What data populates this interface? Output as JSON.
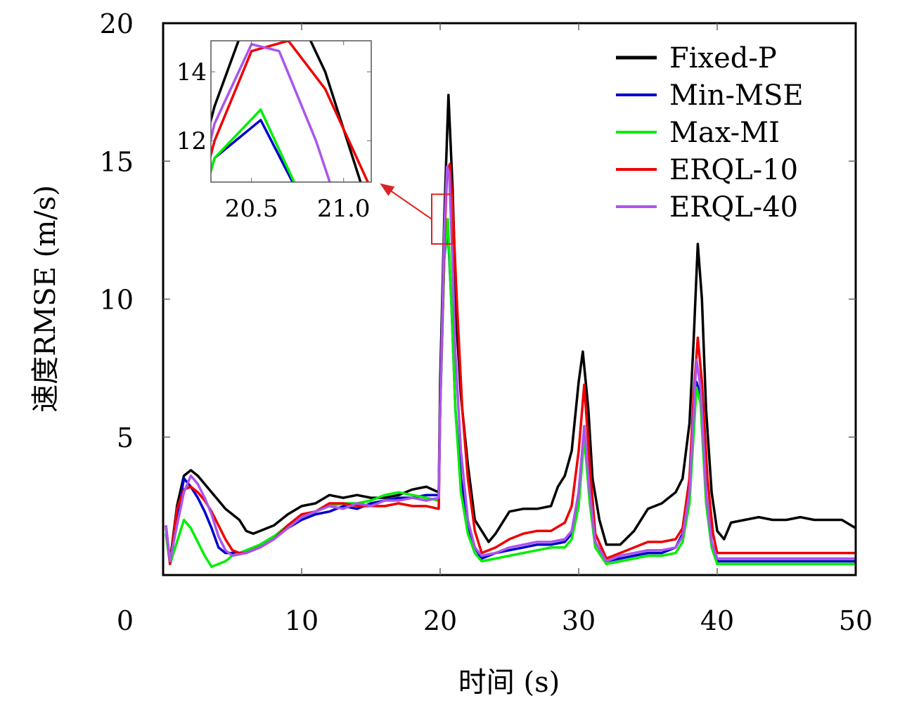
{
  "chart_data": {
    "type": "line",
    "title": "",
    "xlabel": "时间 (s)",
    "ylabel": "速度RMSE (m/s)",
    "xlim": [
      0,
      50
    ],
    "ylim": [
      0,
      20
    ],
    "x_ticks": [
      0,
      10,
      20,
      30,
      40,
      50
    ],
    "x_tick_labels": [
      "0",
      "10",
      "20",
      "30",
      "40",
      "50"
    ],
    "y_ticks": [
      5,
      10,
      15,
      20
    ],
    "y_tick_labels": [
      "5",
      "10",
      "15",
      "20"
    ],
    "grid": false,
    "legend_position": "top-right",
    "series": [
      {
        "name": "Fixed-P",
        "color": "#000000",
        "x": [
          0.2,
          0.5,
          1.0,
          1.5,
          2.0,
          2.5,
          3.0,
          3.5,
          4.0,
          4.5,
          5.0,
          5.5,
          6.0,
          6.5,
          7.0,
          8.0,
          9.0,
          10.0,
          11.0,
          12.0,
          13.0,
          14.0,
          15.0,
          16.0,
          17.0,
          18.0,
          19.0,
          19.9,
          20.0,
          20.3,
          20.6,
          20.9,
          21.2,
          21.5,
          22.0,
          22.5,
          23.0,
          23.5,
          24.0,
          25.0,
          26.0,
          27.0,
          28.0,
          28.5,
          29.0,
          29.5,
          30.0,
          30.3,
          30.7,
          31.0,
          31.5,
          32.0,
          33.0,
          34.0,
          35.0,
          36.0,
          37.0,
          37.5,
          38.0,
          38.3,
          38.6,
          38.9,
          39.2,
          39.6,
          40.0,
          40.5,
          41.0,
          42.0,
          43.0,
          44.0,
          45.0,
          46.0,
          47.0,
          48.0,
          49.0,
          50.0
        ],
        "y": [
          1.8,
          0.5,
          2.5,
          3.6,
          3.8,
          3.6,
          3.3,
          3.0,
          2.7,
          2.4,
          2.2,
          2.0,
          1.6,
          1.5,
          1.6,
          1.8,
          2.2,
          2.5,
          2.6,
          2.9,
          2.8,
          2.9,
          2.8,
          2.8,
          2.9,
          3.1,
          3.2,
          3.0,
          7.0,
          13.0,
          17.4,
          14.0,
          9.0,
          6.5,
          4.0,
          2.0,
          1.6,
          1.2,
          1.5,
          2.3,
          2.4,
          2.4,
          2.5,
          3.2,
          3.6,
          4.5,
          7.0,
          8.1,
          6.0,
          3.5,
          2.0,
          1.1,
          1.1,
          1.6,
          2.4,
          2.6,
          3.0,
          3.5,
          5.5,
          8.5,
          12.0,
          10.0,
          6.0,
          3.0,
          1.6,
          1.3,
          1.9,
          2.0,
          2.1,
          2.0,
          2.0,
          2.1,
          2.0,
          2.0,
          2.0,
          1.7
        ]
      },
      {
        "name": "Min-MSE",
        "color": "#0000cc",
        "x": [
          0.2,
          0.5,
          1.0,
          1.5,
          2.0,
          2.5,
          3.0,
          3.5,
          4.0,
          4.5,
          5.0,
          6.0,
          7.0,
          8.0,
          9.0,
          10.0,
          11.0,
          12.0,
          13.0,
          14.0,
          15.0,
          16.0,
          17.0,
          18.0,
          19.0,
          19.9,
          20.0,
          20.3,
          20.55,
          20.8,
          21.1,
          21.5,
          22.0,
          22.5,
          23.0,
          24.0,
          25.0,
          26.0,
          27.0,
          28.0,
          29.0,
          29.5,
          30.0,
          30.4,
          30.8,
          31.2,
          32.0,
          33.0,
          34.0,
          35.0,
          36.0,
          37.0,
          37.5,
          38.0,
          38.5,
          38.8,
          39.2,
          39.6,
          40.0,
          41.0,
          45.0,
          50.0
        ],
        "y": [
          1.8,
          0.4,
          2.0,
          3.5,
          3.2,
          2.8,
          2.3,
          1.7,
          1.0,
          0.8,
          0.8,
          0.8,
          1.1,
          1.4,
          1.7,
          2.0,
          2.2,
          2.3,
          2.5,
          2.4,
          2.6,
          2.7,
          2.8,
          2.8,
          2.9,
          2.9,
          6.0,
          11.5,
          12.6,
          10.0,
          6.0,
          3.5,
          1.8,
          1.0,
          0.6,
          0.8,
          0.9,
          1.0,
          1.1,
          1.1,
          1.2,
          1.5,
          3.0,
          5.3,
          3.0,
          1.2,
          0.5,
          0.6,
          0.7,
          0.8,
          0.8,
          1.0,
          1.5,
          3.0,
          7.0,
          6.5,
          3.0,
          1.2,
          0.5,
          0.5,
          0.5,
          0.5
        ]
      },
      {
        "name": "Max-MI",
        "color": "#00ee00",
        "x": [
          0.2,
          0.5,
          1.0,
          1.5,
          2.0,
          2.5,
          3.0,
          3.5,
          4.0,
          4.5,
          5.0,
          6.0,
          7.0,
          8.0,
          9.0,
          10.0,
          11.0,
          12.0,
          13.0,
          14.0,
          15.0,
          16.0,
          17.0,
          18.0,
          19.0,
          19.9,
          20.0,
          20.3,
          20.55,
          20.8,
          21.1,
          21.5,
          22.0,
          22.5,
          23.0,
          24.0,
          25.0,
          26.0,
          27.0,
          28.0,
          29.0,
          29.5,
          30.0,
          30.4,
          30.8,
          31.2,
          32.0,
          33.0,
          34.0,
          35.0,
          36.0,
          37.0,
          37.5,
          38.0,
          38.5,
          38.8,
          39.2,
          39.6,
          40.0,
          41.0,
          45.0,
          50.0
        ],
        "y": [
          1.5,
          0.4,
          1.2,
          2.0,
          1.7,
          1.2,
          0.7,
          0.3,
          0.4,
          0.5,
          0.7,
          0.9,
          1.1,
          1.4,
          1.8,
          2.1,
          2.3,
          2.5,
          2.6,
          2.6,
          2.7,
          2.9,
          3.0,
          2.9,
          2.8,
          2.7,
          6.0,
          11.5,
          12.9,
          10.0,
          6.0,
          3.0,
          1.5,
          0.8,
          0.5,
          0.6,
          0.7,
          0.8,
          0.9,
          1.0,
          1.0,
          1.3,
          2.5,
          5.0,
          2.6,
          1.0,
          0.4,
          0.5,
          0.6,
          0.7,
          0.7,
          0.8,
          1.2,
          2.6,
          6.8,
          6.2,
          2.6,
          1.0,
          0.4,
          0.4,
          0.4,
          0.4
        ]
      },
      {
        "name": "ERQL-10",
        "color": "#ee0000",
        "x": [
          0.2,
          0.5,
          1.0,
          1.5,
          2.0,
          2.5,
          3.0,
          3.5,
          4.0,
          4.5,
          5.0,
          5.5,
          6.0,
          7.0,
          8.0,
          9.0,
          10.0,
          11.0,
          12.0,
          13.0,
          14.0,
          15.0,
          16.0,
          17.0,
          18.0,
          19.0,
          19.9,
          20.0,
          20.3,
          20.5,
          20.7,
          20.9,
          21.2,
          21.6,
          22.0,
          22.5,
          23.0,
          24.0,
          25.0,
          26.0,
          27.0,
          28.0,
          29.0,
          29.5,
          30.0,
          30.4,
          30.8,
          31.2,
          32.0,
          33.0,
          34.0,
          35.0,
          36.0,
          37.0,
          37.5,
          38.0,
          38.3,
          38.6,
          38.9,
          39.3,
          39.7,
          40.0,
          41.0,
          45.0,
          50.0
        ],
        "y": [
          1.8,
          0.4,
          2.4,
          3.1,
          3.2,
          3.0,
          2.7,
          2.3,
          1.8,
          1.3,
          0.9,
          0.8,
          0.8,
          1.0,
          1.3,
          1.8,
          2.2,
          2.3,
          2.6,
          2.6,
          2.5,
          2.5,
          2.5,
          2.6,
          2.5,
          2.5,
          2.4,
          6.0,
          12.0,
          14.6,
          14.9,
          13.5,
          10.0,
          6.0,
          3.5,
          1.6,
          0.8,
          1.0,
          1.3,
          1.5,
          1.6,
          1.6,
          1.9,
          2.5,
          4.5,
          6.9,
          4.0,
          1.5,
          0.6,
          0.8,
          1.0,
          1.2,
          1.2,
          1.3,
          1.7,
          3.5,
          6.5,
          8.6,
          7.0,
          3.5,
          1.5,
          0.8,
          0.8,
          0.8,
          0.8
        ]
      },
      {
        "name": "ERQL-40",
        "color": "#aa55ee",
        "x": [
          0.2,
          0.5,
          1.0,
          1.5,
          2.0,
          2.5,
          3.0,
          3.5,
          4.0,
          4.5,
          5.0,
          6.0,
          7.0,
          8.0,
          9.0,
          10.0,
          11.0,
          12.0,
          13.0,
          14.0,
          15.0,
          16.0,
          17.0,
          18.0,
          19.0,
          19.9,
          20.0,
          20.3,
          20.5,
          20.65,
          20.85,
          21.1,
          21.5,
          22.0,
          22.5,
          23.0,
          24.0,
          25.0,
          26.0,
          27.0,
          28.0,
          29.0,
          29.5,
          30.0,
          30.4,
          30.8,
          31.2,
          32.0,
          33.0,
          34.0,
          35.0,
          36.0,
          37.0,
          37.5,
          38.0,
          38.5,
          38.8,
          39.2,
          39.6,
          40.0,
          41.0,
          45.0,
          50.0
        ],
        "y": [
          1.8,
          0.5,
          1.8,
          3.0,
          3.6,
          3.3,
          2.8,
          2.2,
          1.4,
          0.9,
          0.7,
          0.8,
          1.0,
          1.3,
          1.7,
          2.1,
          2.3,
          2.5,
          2.4,
          2.6,
          2.5,
          2.7,
          2.7,
          2.8,
          2.7,
          2.8,
          6.0,
          12.5,
          14.8,
          14.6,
          12.0,
          8.0,
          4.5,
          2.0,
          1.0,
          0.7,
          0.8,
          1.0,
          1.1,
          1.2,
          1.2,
          1.3,
          1.6,
          3.0,
          5.4,
          3.0,
          1.2,
          0.5,
          0.7,
          0.8,
          0.9,
          0.9,
          1.0,
          1.4,
          3.0,
          7.8,
          6.8,
          3.0,
          1.2,
          0.6,
          0.6,
          0.6,
          0.6
        ]
      }
    ],
    "inset": {
      "xlim": [
        20.28,
        21.15
      ],
      "ylim": [
        10.8,
        14.9
      ],
      "x_ticks": [
        20.5,
        21.0
      ],
      "x_tick_labels": [
        "20.5",
        "21.0"
      ],
      "y_ticks": [
        12,
        14
      ],
      "y_tick_labels": [
        "12",
        "14"
      ],
      "zoom_region": {
        "x": [
          20.0,
          21.5
        ],
        "y": [
          12.0,
          13.8
        ]
      },
      "annotation_color": "#dd2222"
    }
  }
}
